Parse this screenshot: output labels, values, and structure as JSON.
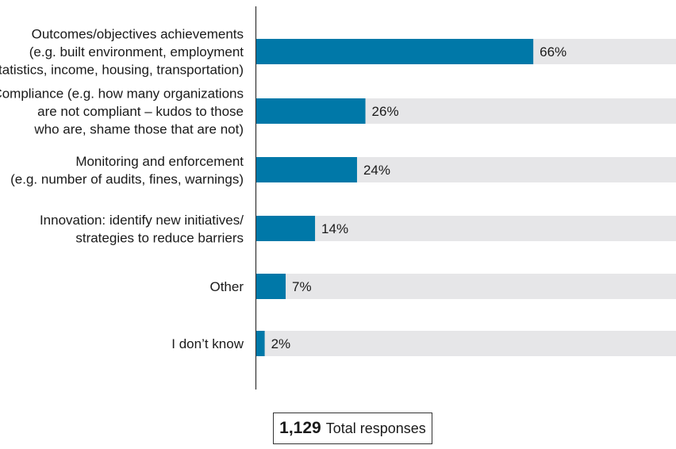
{
  "chart_data": {
    "type": "bar",
    "orientation": "horizontal",
    "categories": [
      [
        "Outcomes/objectives achievements",
        "(e.g. built environment, employment",
        "statistics, income, housing, transportation)"
      ],
      [
        "Compliance (e.g. how many organizations",
        "are not compliant – kudos to those",
        "who are, shame those that are not)"
      ],
      [
        "Monitoring and enforcement",
        "(e.g. number of audits, fines, warnings)"
      ],
      [
        "Innovation: identify new initiatives/",
        "strategies to reduce barriers"
      ],
      [
        "Other"
      ],
      [
        "I don’t know"
      ]
    ],
    "values": [
      66,
      26,
      24,
      14,
      7,
      2
    ],
    "value_labels": [
      "66%",
      "26%",
      "24%",
      "14%",
      "7%",
      "2%"
    ],
    "xlim": [
      0,
      100
    ],
    "bar_color": "#0078a8",
    "track_color": "#e6e6e8",
    "grid": false,
    "legend": "none"
  },
  "total": {
    "count": "1,129",
    "label": "Total responses"
  }
}
